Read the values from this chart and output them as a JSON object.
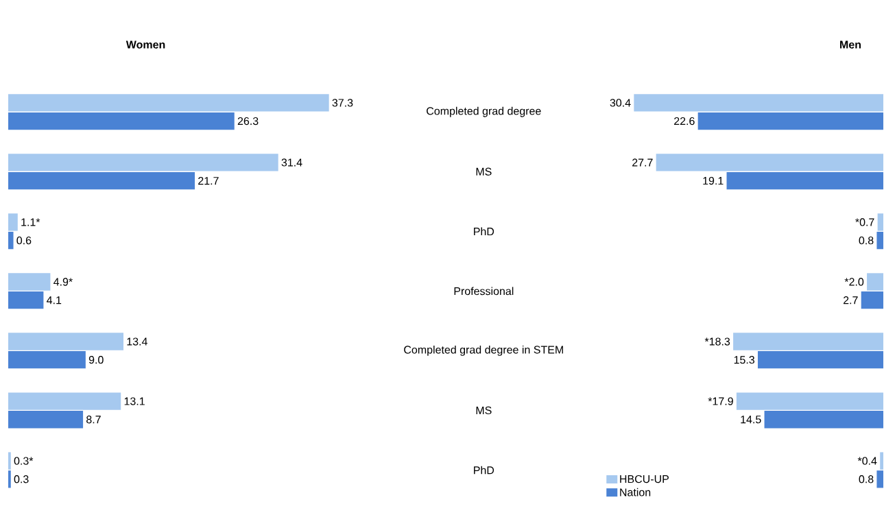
{
  "chart_data": [
    {
      "type": "bar",
      "orientation": "horizontal",
      "title": "Women",
      "categories": [
        "Completed grad degree",
        "MS",
        "PhD",
        "Professional",
        "Completed grad degree in STEM",
        "MS",
        "PhD"
      ],
      "tick_labels": "y",
      "series": [
        {
          "color": "#a6c9ef",
          "values": [
            37.3,
            31.4,
            1.1,
            4.9,
            13.4,
            13.1,
            0.3
          ],
          "value_labels": [
            "37.3",
            "31.4",
            "1.1*",
            "4.9*",
            "13.4",
            "13.1",
            "0.3*"
          ]
        },
        {
          "color": "#4a82d4",
          "values": [
            26.3,
            21.7,
            0.6,
            4.1,
            9.0,
            8.7,
            0.3
          ],
          "value_labels": [
            "26.3",
            "21.7",
            "0.6",
            "4.1",
            "9.0",
            "8.7",
            "0.3"
          ]
        }
      ]
    },
    {
      "type": "bar",
      "orientation": "horizontal",
      "title": "Men",
      "categories": [
        null,
        null,
        null,
        null,
        null,
        null,
        null
      ],
      "tick_labels": false,
      "legend": "bottom left",
      "series": [
        {
          "name": "HBCU-UP",
          "color": "#a6c9ef",
          "values": [
            30.4,
            27.7,
            0.7,
            2.0,
            18.3,
            17.9,
            0.4
          ],
          "value_labels": [
            "30.4",
            "27.7",
            "*0.7",
            "*2.0",
            "*18.3",
            "*17.9",
            "*0.4"
          ]
        },
        {
          "name": "Nation",
          "color": "#4a82d4",
          "values": [
            22.6,
            19.1,
            0.8,
            2.7,
            15.3,
            14.5,
            0.8
          ],
          "value_labels": [
            "22.6",
            "19.1",
            "0.8",
            "2.7",
            "15.3",
            "14.5",
            "0.8"
          ]
        }
      ]
    }
  ]
}
